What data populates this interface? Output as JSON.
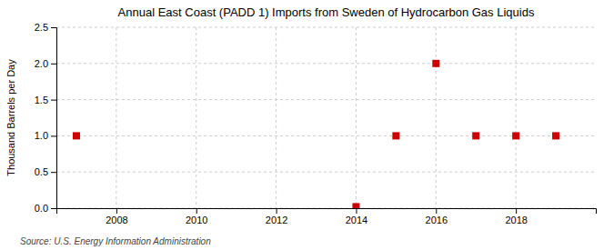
{
  "chart_data": {
    "type": "scatter",
    "title": "Annual East Coast (PADD 1) Imports from Sweden of Hydrocarbon Gas Liquids",
    "ylabel": "Thousand Barrels per Day",
    "source": "Source: U.S. Energy Information Administration",
    "x": [
      2007,
      2014,
      2015,
      2016,
      2017,
      2018,
      2019
    ],
    "values": [
      1.0,
      0.02,
      1.0,
      2.0,
      1.0,
      1.0,
      1.0
    ],
    "color": "#cc0000",
    "marker": "square",
    "xlim": [
      2006.5,
      2020
    ],
    "ylim": [
      0,
      2.5
    ],
    "xticks": [
      2008,
      2010,
      2012,
      2014,
      2016,
      2018
    ],
    "yticks": [
      {
        "value": 0.0,
        "label": "0.0"
      },
      0.5,
      {
        "value": 1.0,
        "label": "1.0"
      },
      1.5,
      {
        "value": 2.0,
        "label": "2.0"
      },
      2.5
    ],
    "grid": true
  }
}
